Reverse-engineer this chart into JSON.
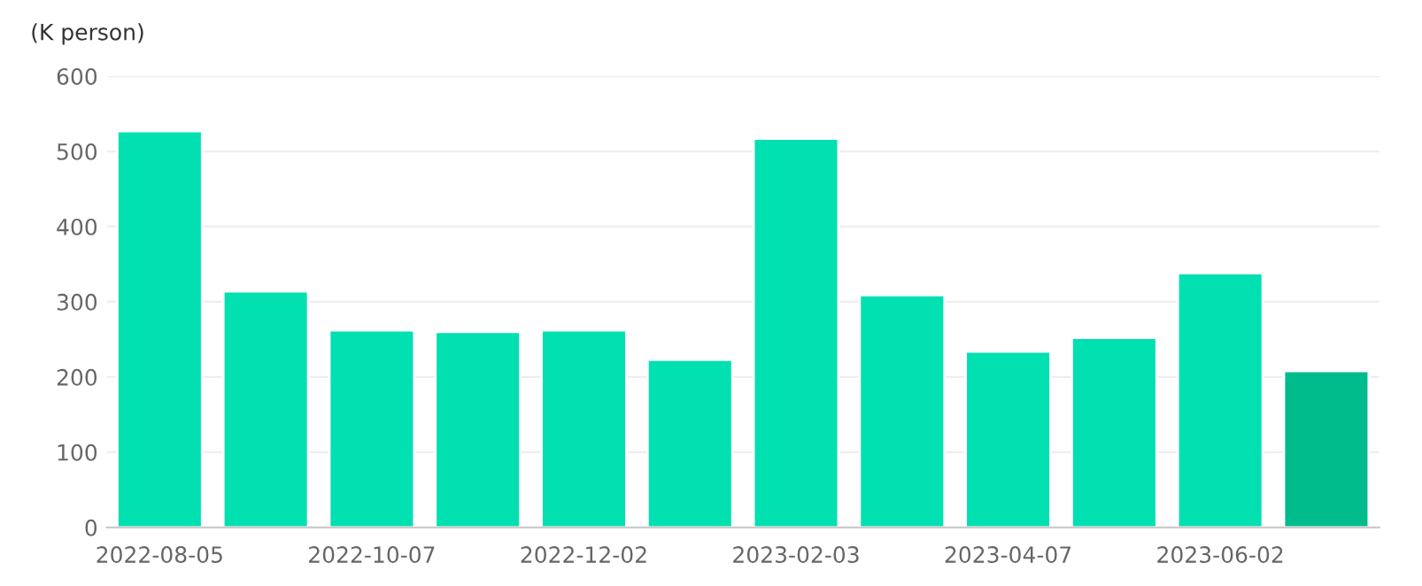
{
  "chart_data": {
    "type": "bar",
    "ylabel": "(K person)",
    "categories": [
      "2022-08-05",
      null,
      "2022-10-07",
      null,
      "2022-12-02",
      null,
      "2023-02-03",
      null,
      "2023-04-07",
      null,
      "2023-06-02",
      null
    ],
    "values": [
      527,
      314,
      262,
      260,
      262,
      223,
      517,
      309,
      234,
      252,
      338,
      208
    ],
    "colors": [
      "#00e0b0",
      "#00e0b0",
      "#00e0b0",
      "#00e0b0",
      "#00e0b0",
      "#00e0b0",
      "#00e0b0",
      "#00e0b0",
      "#00e0b0",
      "#00e0b0",
      "#00e0b0",
      "#00bc8c"
    ],
    "ylim": [
      0,
      600
    ],
    "yticks": [
      0,
      100,
      200,
      300,
      400,
      500,
      600
    ],
    "grid": "y",
    "legend": false
  }
}
